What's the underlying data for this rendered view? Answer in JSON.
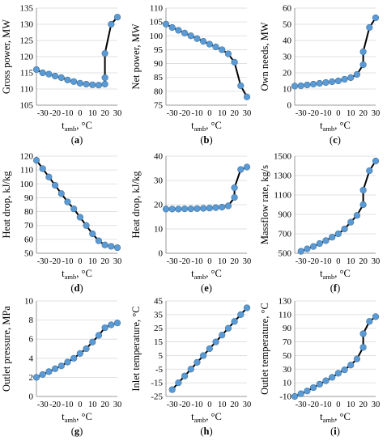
{
  "chart_data": [
    {
      "type": "line",
      "panel_label": "(a)",
      "ylabel": "Gross power, MW",
      "xlabel_main": "t",
      "xlabel_sub": "amb",
      "xlabel_unit": ", °C",
      "xlim": [
        -35,
        30
      ],
      "ylim": [
        105,
        135
      ],
      "yticks": [
        105,
        110,
        115,
        120,
        125,
        130,
        135
      ],
      "xticks": [
        -30,
        -20,
        -10,
        0,
        10,
        20,
        30
      ],
      "x": [
        -35,
        -30,
        -25,
        -20,
        -15,
        -10,
        -5,
        0,
        5,
        10,
        15,
        20,
        20,
        20,
        25,
        30
      ],
      "values": [
        116,
        115,
        114.6,
        114,
        113.5,
        112.8,
        112.3,
        111.8,
        111.5,
        111.3,
        111.2,
        111.5,
        113.5,
        121,
        130,
        132.2
      ],
      "line_color": "#000000",
      "marker_color": "#5b9bd5"
    },
    {
      "type": "line",
      "panel_label": "(b)",
      "ylabel": "Net power, MW",
      "xlabel_main": "t",
      "xlabel_sub": "amb",
      "xlabel_unit": ", °C",
      "xlim": [
        -35,
        30
      ],
      "ylim": [
        75,
        110
      ],
      "yticks": [
        75,
        80,
        85,
        90,
        95,
        100,
        105,
        110
      ],
      "xticks": [
        -30,
        -20,
        -10,
        0,
        10,
        20,
        30
      ],
      "x": [
        -35,
        -30,
        -25,
        -20,
        -15,
        -10,
        -5,
        0,
        5,
        10,
        15,
        20,
        25,
        30
      ],
      "values": [
        104.2,
        103,
        102,
        101,
        100,
        99,
        98,
        97,
        96,
        95,
        93.5,
        90.5,
        82,
        78
      ],
      "line_color": "#000000",
      "marker_color": "#5b9bd5"
    },
    {
      "type": "line",
      "panel_label": "(c)",
      "ylabel": "Own needs, MW",
      "xlabel_main": "t",
      "xlabel_sub": "amb",
      "xlabel_unit": ", °C",
      "xlim": [
        -35,
        30
      ],
      "ylim": [
        0,
        60
      ],
      "yticks": [
        0,
        10,
        20,
        30,
        40,
        50,
        60
      ],
      "xticks": [
        -30,
        -20,
        -10,
        0,
        10,
        20,
        30
      ],
      "x": [
        -35,
        -30,
        -25,
        -20,
        -15,
        -10,
        -5,
        0,
        5,
        10,
        15,
        20,
        20,
        25,
        30
      ],
      "values": [
        11.8,
        12,
        12.5,
        13,
        13.5,
        14,
        14.5,
        15,
        16,
        17,
        19,
        25,
        33,
        48,
        54
      ],
      "line_color": "#000000",
      "marker_color": "#5b9bd5"
    },
    {
      "type": "line",
      "panel_label": "(d)",
      "ylabel": "Heat drop, kJ/kg",
      "xlabel_main": "t",
      "xlabel_sub": "amb",
      "xlabel_unit": ", °C",
      "xlim": [
        -35,
        30
      ],
      "ylim": [
        50,
        120
      ],
      "yticks": [
        50,
        60,
        70,
        80,
        90,
        100,
        110,
        120
      ],
      "xticks": [
        -30,
        -20,
        -10,
        0,
        10,
        20,
        30
      ],
      "x": [
        -35,
        -30,
        -25,
        -20,
        -15,
        -10,
        -5,
        0,
        5,
        10,
        15,
        20,
        25,
        30
      ],
      "values": [
        117,
        111,
        105,
        99,
        93,
        87,
        82,
        76,
        70,
        64,
        59,
        56,
        55,
        54
      ],
      "line_color": "#000000",
      "marker_color": "#5b9bd5"
    },
    {
      "type": "line",
      "panel_label": "(e)",
      "ylabel": "Heat drop, kJ/kg",
      "xlabel_main": "t",
      "xlabel_sub": "amb",
      "xlabel_unit": ", °C",
      "xlim": [
        -35,
        30
      ],
      "ylim": [
        0,
        40
      ],
      "yticks": [
        0,
        10,
        20,
        30,
        40
      ],
      "xticks": [
        -30,
        -20,
        -10,
        0,
        10,
        20,
        30
      ],
      "x": [
        -35,
        -30,
        -25,
        -20,
        -15,
        -10,
        -5,
        0,
        5,
        10,
        15,
        20,
        20,
        25,
        30
      ],
      "values": [
        18.2,
        18.2,
        18.2,
        18.3,
        18.3,
        18.4,
        18.5,
        18.6,
        18.8,
        19,
        19.5,
        23,
        27,
        34.5,
        35.5
      ],
      "line_color": "#000000",
      "marker_color": "#5b9bd5"
    },
    {
      "type": "line",
      "panel_label": "(f)",
      "ylabel": "Massflow rate, kg/s",
      "xlabel_main": "t",
      "xlabel_sub": "amb",
      "xlabel_unit": ", °C",
      "xlim": [
        -35,
        30
      ],
      "ylim": [
        500,
        1500
      ],
      "yticks": [
        500,
        700,
        900,
        1100,
        1300,
        1500
      ],
      "xticks": [
        -30,
        -20,
        -10,
        0,
        10,
        20,
        30
      ],
      "x": [
        -30,
        -25,
        -20,
        -15,
        -10,
        -5,
        0,
        5,
        10,
        15,
        20,
        20,
        25,
        30
      ],
      "values": [
        520,
        545,
        570,
        600,
        630,
        665,
        700,
        750,
        820,
        890,
        1000,
        1150,
        1350,
        1450
      ],
      "line_color": "#000000",
      "marker_color": "#5b9bd5"
    },
    {
      "type": "line",
      "panel_label": "(g)",
      "ylabel": "Outlet pressure, MPa",
      "xlabel_main": "t",
      "xlabel_sub": "amb",
      "xlabel_unit": ", °C",
      "xlim": [
        -35,
        30
      ],
      "ylim": [
        0,
        10
      ],
      "yticks": [
        0,
        2,
        4,
        6,
        8,
        10
      ],
      "xticks": [
        -30,
        -20,
        -10,
        0,
        10,
        20,
        30
      ],
      "x": [
        -35,
        -30,
        -25,
        -20,
        -15,
        -10,
        -5,
        0,
        5,
        10,
        15,
        20,
        25,
        30
      ],
      "values": [
        2,
        2.3,
        2.6,
        2.9,
        3.2,
        3.6,
        4,
        4.5,
        5,
        5.7,
        6.4,
        7.2,
        7.5,
        7.7
      ],
      "line_color": "#000000",
      "marker_color": "#5b9bd5"
    },
    {
      "type": "line",
      "panel_label": "(h)",
      "ylabel": "Inlet temperature, °C",
      "xlabel_main": "t",
      "xlabel_sub": "amb",
      "xlabel_unit": ", °C",
      "xlim": [
        -35,
        30
      ],
      "ylim": [
        -25,
        45
      ],
      "yticks": [
        -25,
        -15,
        -5,
        5,
        15,
        25,
        35,
        45
      ],
      "xticks": [
        -30,
        -20,
        -10,
        0,
        10,
        20,
        30
      ],
      "x": [
        -30,
        -25,
        -20,
        -15,
        -10,
        -5,
        0,
        5,
        10,
        15,
        20,
        25,
        30
      ],
      "values": [
        -20,
        -15,
        -10,
        -5,
        0,
        5,
        10,
        15,
        20,
        25,
        30,
        35,
        40
      ],
      "line_color": "#000000",
      "marker_color": "#5b9bd5"
    },
    {
      "type": "line",
      "panel_label": "(i)",
      "ylabel": "Outlet temperature, °C",
      "xlabel_main": "t",
      "xlabel_sub": "amb",
      "xlabel_unit": ", °C",
      "xlim": [
        -35,
        30
      ],
      "ylim": [
        -10,
        130
      ],
      "yticks": [
        -10,
        10,
        30,
        50,
        70,
        90,
        110,
        130
      ],
      "xticks": [
        -30,
        -20,
        -10,
        0,
        10,
        20,
        30
      ],
      "x": [
        -35,
        -30,
        -25,
        -20,
        -15,
        -10,
        -5,
        0,
        5,
        10,
        15,
        20,
        20,
        25,
        30
      ],
      "values": [
        -10,
        -6,
        -2,
        3,
        8,
        13,
        18,
        24,
        29,
        36,
        45,
        62,
        82,
        100,
        107
      ],
      "line_color": "#000000",
      "marker_color": "#5b9bd5"
    }
  ]
}
